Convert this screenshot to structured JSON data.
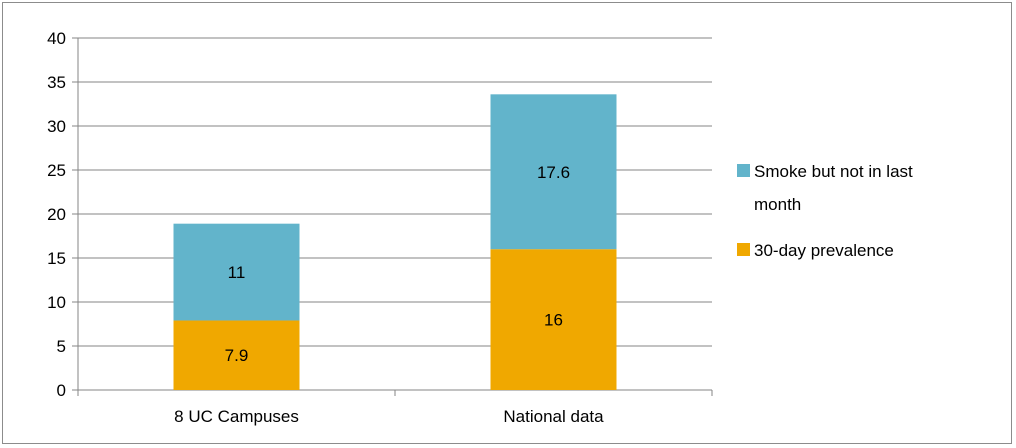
{
  "chart_data": {
    "type": "bar",
    "stacked": true,
    "categories": [
      "8 UC Campuses",
      "National data"
    ],
    "series": [
      {
        "name": "30-day prevalence",
        "values": [
          7.9,
          16
        ],
        "color": "#f0a800"
      },
      {
        "name": "Smoke but not in last month",
        "values": [
          11,
          17.6
        ],
        "color": "#62b4cb"
      }
    ],
    "legend_order": [
      1,
      0
    ],
    "legend_lines": [
      [
        "Smoke but not in last",
        "month"
      ],
      [
        "30-day prevalence"
      ]
    ],
    "ylim": [
      0,
      40
    ],
    "yticks": [
      0,
      5,
      10,
      15,
      20,
      25,
      30,
      35,
      40
    ],
    "grid": true,
    "legend_position": "right",
    "title": "",
    "xlabel": "",
    "ylabel": ""
  }
}
